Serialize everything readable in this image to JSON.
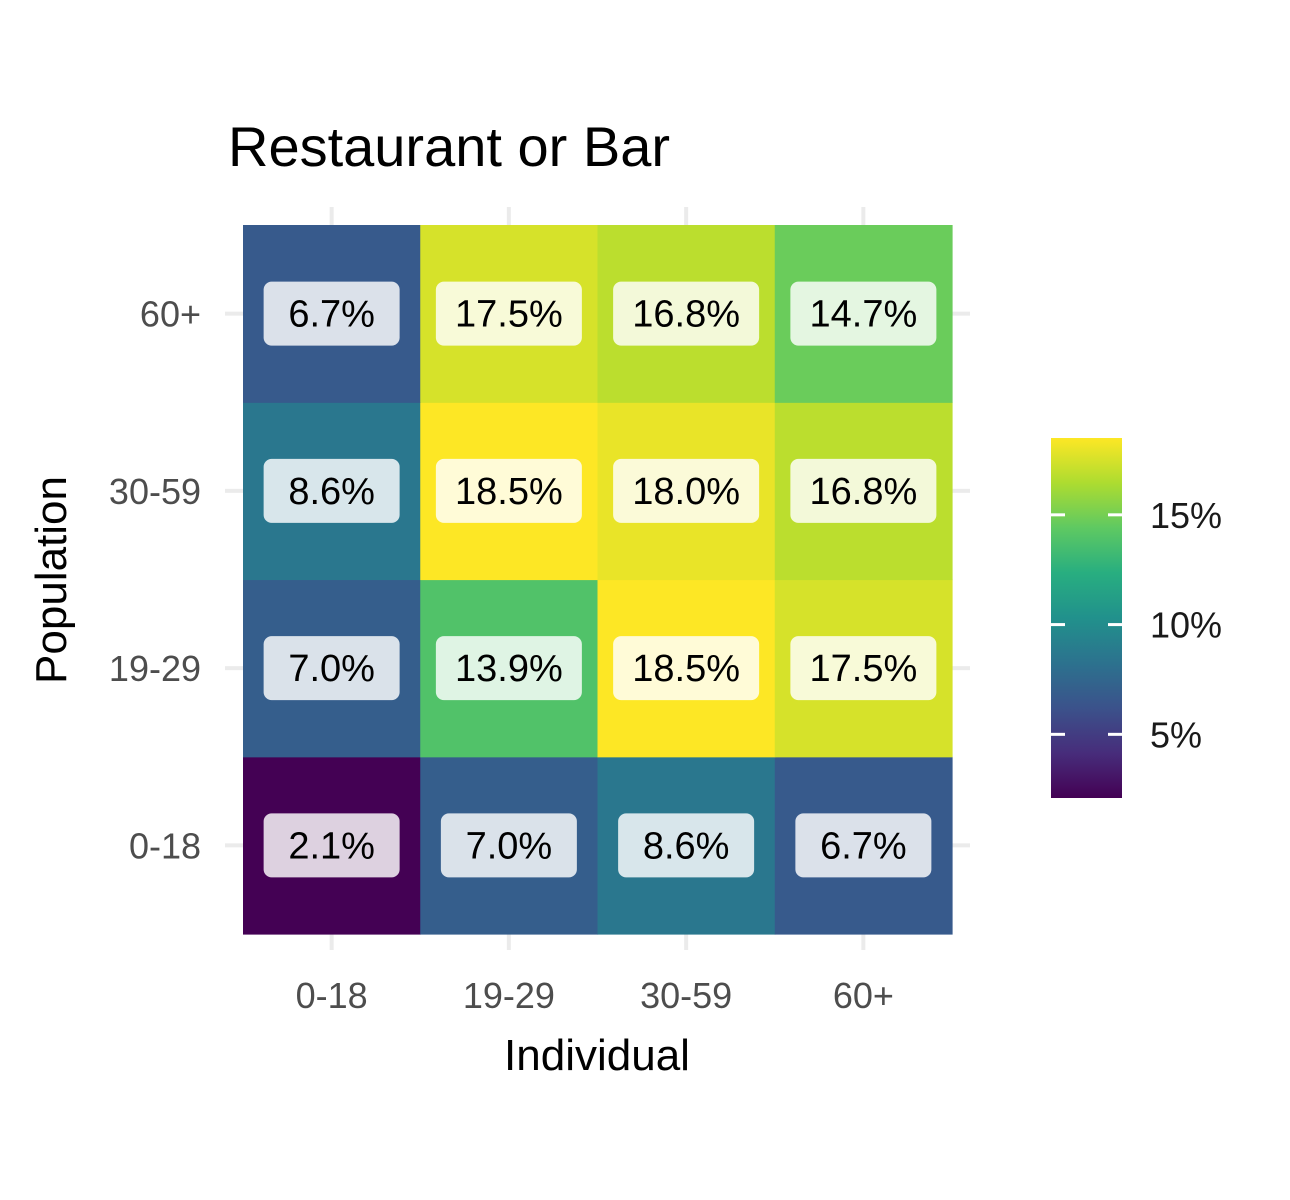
{
  "chart_data": {
    "type": "heatmap",
    "title": "Restaurant or Bar",
    "xlabel": "Individual",
    "ylabel": "Population",
    "x_categories": [
      "0-18",
      "19-29",
      "30-59",
      "60+"
    ],
    "y_categories": [
      "0-18",
      "19-29",
      "30-59",
      "60+"
    ],
    "cells": [
      {
        "x": "0-18",
        "y": "0-18",
        "value": 2.1,
        "label": "2.1%"
      },
      {
        "x": "19-29",
        "y": "0-18",
        "value": 7.0,
        "label": "7.0%"
      },
      {
        "x": "30-59",
        "y": "0-18",
        "value": 8.6,
        "label": "8.6%"
      },
      {
        "x": "60+",
        "y": "0-18",
        "value": 6.7,
        "label": "6.7%"
      },
      {
        "x": "0-18",
        "y": "19-29",
        "value": 7.0,
        "label": "7.0%"
      },
      {
        "x": "19-29",
        "y": "19-29",
        "value": 13.9,
        "label": "13.9%"
      },
      {
        "x": "30-59",
        "y": "19-29",
        "value": 18.5,
        "label": "18.5%"
      },
      {
        "x": "60+",
        "y": "19-29",
        "value": 17.5,
        "label": "17.5%"
      },
      {
        "x": "0-18",
        "y": "30-59",
        "value": 8.6,
        "label": "8.6%"
      },
      {
        "x": "19-29",
        "y": "30-59",
        "value": 18.5,
        "label": "18.5%"
      },
      {
        "x": "30-59",
        "y": "30-59",
        "value": 18.0,
        "label": "18.0%"
      },
      {
        "x": "60+",
        "y": "30-59",
        "value": 16.8,
        "label": "16.8%"
      },
      {
        "x": "0-18",
        "y": "60+",
        "value": 6.7,
        "label": "6.7%"
      },
      {
        "x": "19-29",
        "y": "60+",
        "value": 17.5,
        "label": "17.5%"
      },
      {
        "x": "30-59",
        "y": "60+",
        "value": 16.8,
        "label": "16.8%"
      },
      {
        "x": "60+",
        "y": "60+",
        "value": 14.7,
        "label": "14.7%"
      }
    ],
    "color_scale": {
      "name": "viridis",
      "range": [
        2.1,
        18.5
      ],
      "stops": [
        "#440154",
        "#472d7b",
        "#3b528b",
        "#2c728e",
        "#21918c",
        "#28ae80",
        "#5ec962",
        "#addc30",
        "#fde725"
      ]
    },
    "legend": {
      "position": "right",
      "ticks": [
        {
          "value": 5,
          "label": "5%"
        },
        {
          "value": 10,
          "label": "10%"
        },
        {
          "value": 15,
          "label": "15%"
        }
      ]
    },
    "grid": true
  }
}
